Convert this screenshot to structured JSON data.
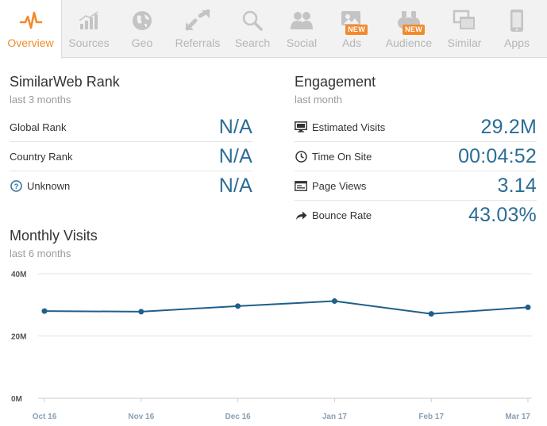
{
  "nav": {
    "tabs": [
      {
        "label": "Overview",
        "icon": "pulse-icon",
        "active": true
      },
      {
        "label": "Sources",
        "icon": "bar-chart-icon",
        "active": false
      },
      {
        "label": "Geo",
        "icon": "globe-icon",
        "active": false
      },
      {
        "label": "Referrals",
        "icon": "arrows-icon",
        "active": false
      },
      {
        "label": "Search",
        "icon": "magnifier-icon",
        "active": false
      },
      {
        "label": "Social",
        "icon": "people-icon",
        "active": false
      },
      {
        "label": "Ads",
        "icon": "ad-display-icon",
        "active": false,
        "badge": "NEW"
      },
      {
        "label": "Audience",
        "icon": "binoculars-icon",
        "active": false,
        "badge": "NEW"
      },
      {
        "label": "Similar",
        "icon": "windows-icon",
        "active": false
      },
      {
        "label": "Apps",
        "icon": "phone-icon",
        "active": false
      }
    ]
  },
  "rank": {
    "title": "SimilarWeb Rank",
    "subtitle": "last 3 months",
    "rows": [
      {
        "label": "Global Rank",
        "value": "N/A"
      },
      {
        "label": "Country Rank",
        "value": "N/A"
      },
      {
        "label": "Unknown",
        "value": "N/A",
        "icon": "question-circle-icon"
      }
    ]
  },
  "engagement": {
    "title": "Engagement",
    "subtitle": "last month",
    "rows": [
      {
        "label": "Estimated Visits",
        "value": "29.2M",
        "icon": "monitor-icon"
      },
      {
        "label": "Time On Site",
        "value": "00:04:52",
        "icon": "clock-icon"
      },
      {
        "label": "Page Views",
        "value": "3.14",
        "icon": "pages-icon"
      },
      {
        "label": "Bounce Rate",
        "value": "43.03%",
        "icon": "share-arrow-icon"
      }
    ]
  },
  "visits": {
    "title": "Monthly Visits",
    "subtitle": "last 6 months"
  },
  "colors": {
    "accent": "#f28a2c",
    "value_blue": "#2b6d96",
    "line": "#1f5f8b"
  },
  "chart_data": {
    "type": "line",
    "categories": [
      "Oct 16",
      "Nov 16",
      "Dec 16",
      "Jan 17",
      "Feb 17",
      "Mar 17"
    ],
    "series": [
      {
        "values": [
          28.0,
          27.8,
          29.6,
          31.2,
          27.1,
          29.2
        ]
      }
    ],
    "ylim": [
      0,
      40
    ],
    "yticks": [
      0,
      20,
      40
    ],
    "ytick_labels": [
      "0M",
      "20M",
      "40M"
    ],
    "grid": true,
    "title": "",
    "xlabel": "",
    "ylabel": ""
  }
}
